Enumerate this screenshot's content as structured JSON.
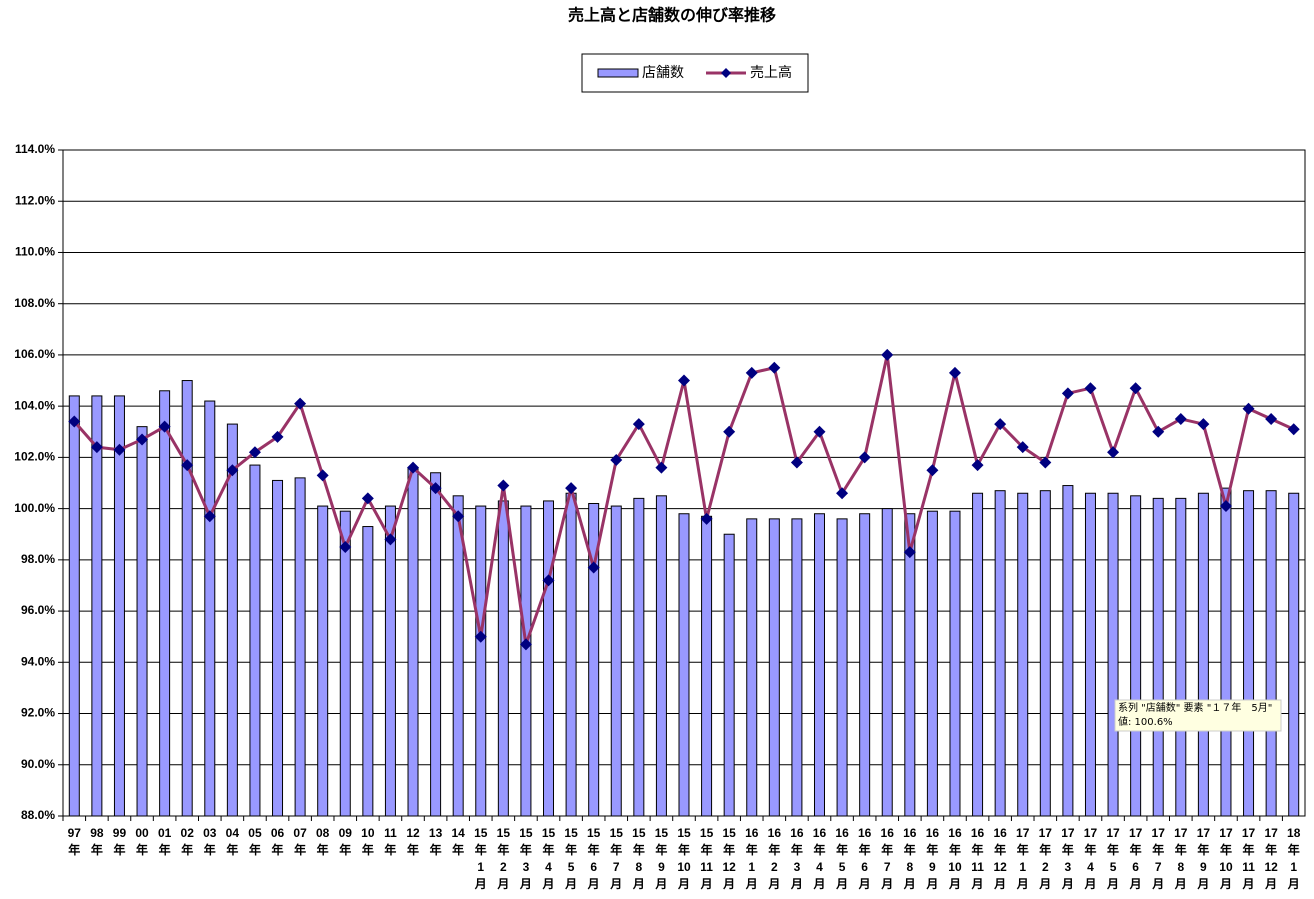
{
  "chart_data": {
    "type": "bar-line",
    "title": "売上高と店舗数の伸び率推移",
    "categories": [
      [
        "97",
        "年"
      ],
      [
        "98",
        "年"
      ],
      [
        "99",
        "年"
      ],
      [
        "00",
        "年"
      ],
      [
        "01",
        "年"
      ],
      [
        "02",
        "年"
      ],
      [
        "03",
        "年"
      ],
      [
        "04",
        "年"
      ],
      [
        "05",
        "年"
      ],
      [
        "06",
        "年"
      ],
      [
        "07",
        "年"
      ],
      [
        "08",
        "年"
      ],
      [
        "09",
        "年"
      ],
      [
        "10",
        "年"
      ],
      [
        "11",
        "年"
      ],
      [
        "12",
        "年"
      ],
      [
        "13",
        "年"
      ],
      [
        "14",
        "年"
      ],
      [
        "15",
        "年",
        "1",
        "月"
      ],
      [
        "15",
        "年",
        "2",
        "月"
      ],
      [
        "15",
        "年",
        "3",
        "月"
      ],
      [
        "15",
        "年",
        "4",
        "月"
      ],
      [
        "15",
        "年",
        "5",
        "月"
      ],
      [
        "15",
        "年",
        "6",
        "月"
      ],
      [
        "15",
        "年",
        "7",
        "月"
      ],
      [
        "15",
        "年",
        "8",
        "月"
      ],
      [
        "15",
        "年",
        "9",
        "月"
      ],
      [
        "15",
        "年",
        "10",
        "月"
      ],
      [
        "15",
        "年",
        "11",
        "月"
      ],
      [
        "15",
        "年",
        "12",
        "月"
      ],
      [
        "16",
        "年",
        "1",
        "月"
      ],
      [
        "16",
        "年",
        "2",
        "月"
      ],
      [
        "16",
        "年",
        "3",
        "月"
      ],
      [
        "16",
        "年",
        "4",
        "月"
      ],
      [
        "16",
        "年",
        "5",
        "月"
      ],
      [
        "16",
        "年",
        "6",
        "月"
      ],
      [
        "16",
        "年",
        "7",
        "月"
      ],
      [
        "16",
        "年",
        "8",
        "月"
      ],
      [
        "16",
        "年",
        "9",
        "月"
      ],
      [
        "16",
        "年",
        "10",
        "月"
      ],
      [
        "16",
        "年",
        "11",
        "月"
      ],
      [
        "16",
        "年",
        "12",
        "月"
      ],
      [
        "17",
        "年",
        "1",
        "月"
      ],
      [
        "17",
        "年",
        "2",
        "月"
      ],
      [
        "17",
        "年",
        "3",
        "月"
      ],
      [
        "17",
        "年",
        "4",
        "月"
      ],
      [
        "17",
        "年",
        "5",
        "月"
      ],
      [
        "17",
        "年",
        "6",
        "月"
      ],
      [
        "17",
        "年",
        "7",
        "月"
      ],
      [
        "17",
        "年",
        "8",
        "月"
      ],
      [
        "17",
        "年",
        "9",
        "月"
      ],
      [
        "17",
        "年",
        "10",
        "月"
      ],
      [
        "17",
        "年",
        "11",
        "月"
      ],
      [
        "17",
        "年",
        "12",
        "月"
      ],
      [
        "18",
        "年",
        "1",
        "月"
      ]
    ],
    "series": [
      {
        "name": "店舗数",
        "type": "bar",
        "color": "#9999ff",
        "values": [
          104.4,
          104.4,
          104.4,
          103.2,
          104.6,
          105.0,
          104.2,
          103.3,
          101.7,
          101.1,
          101.2,
          100.1,
          99.9,
          99.3,
          100.1,
          101.6,
          101.4,
          100.5,
          100.1,
          100.3,
          100.1,
          100.3,
          100.6,
          100.2,
          100.1,
          100.4,
          100.5,
          99.8,
          99.7,
          99.0,
          99.6,
          99.6,
          99.6,
          99.8,
          99.6,
          99.8,
          100.0,
          99.8,
          99.9,
          99.9,
          100.6,
          100.7,
          100.6,
          100.7,
          100.9,
          100.6,
          100.6,
          100.5,
          100.4,
          100.4,
          100.6,
          100.8,
          100.7,
          100.7,
          100.6
        ]
      },
      {
        "name": "売上高",
        "type": "line",
        "color": "#993366",
        "marker_color": "#000080",
        "values": [
          103.4,
          102.4,
          102.3,
          102.7,
          103.2,
          101.7,
          99.7,
          101.5,
          102.2,
          102.8,
          104.1,
          101.3,
          98.5,
          100.4,
          98.8,
          101.6,
          100.8,
          99.7,
          95.0,
          100.9,
          94.7,
          97.2,
          100.8,
          97.7,
          101.9,
          103.3,
          101.6,
          105.0,
          99.6,
          103.0,
          105.3,
          105.5,
          101.8,
          103.0,
          100.6,
          102.0,
          106.0,
          98.3,
          101.5,
          105.3,
          101.7,
          103.3,
          102.4,
          101.8,
          104.5,
          104.7,
          102.2,
          104.7,
          103.0,
          103.5,
          103.3,
          100.1,
          103.9,
          103.5,
          103.1
        ]
      }
    ],
    "ylim": [
      88,
      114
    ],
    "yticks": [
      {
        "value": 88,
        "label": "88.0%"
      },
      {
        "value": 90,
        "label": "90.0%"
      },
      {
        "value": 92,
        "label": "92.0%"
      },
      {
        "value": 94,
        "label": "94.0%"
      },
      {
        "value": 96,
        "label": "96.0%"
      },
      {
        "value": 98,
        "label": "98.0%"
      },
      {
        "value": 100,
        "label": "100.0%"
      },
      {
        "value": 102,
        "label": "102.0%"
      },
      {
        "value": 104,
        "label": "104.0%"
      },
      {
        "value": 106,
        "label": "106.0%"
      },
      {
        "value": 108,
        "label": "108.0%"
      },
      {
        "value": 110,
        "label": "110.0%"
      },
      {
        "value": 112,
        "label": "112.0%"
      },
      {
        "value": 114,
        "label": "114.0%"
      }
    ],
    "grid": true,
    "legend": "top",
    "tooltip": [
      "系列 \"店舗数\" 要素 \"１７年　5月\"",
      "値: 100.6%"
    ]
  }
}
